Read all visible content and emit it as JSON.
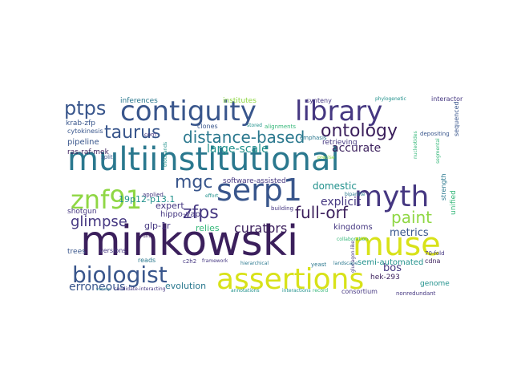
{
  "colors": {
    "dark_purple": "#3b1f5c",
    "indigo": "#453781",
    "blue": "#3e5f8a",
    "slate": "#39568c",
    "teal": "#2a788e",
    "teal_green": "#21918c",
    "green": "#35b779",
    "lime": "#8fd744",
    "yellow": "#d8e219",
    "bright_yellow": "#e8e419"
  },
  "words": [
    {
      "text": "minkowski",
      "color": "dark_purple"
    },
    {
      "text": "multiinstitutional",
      "color": "teal"
    },
    {
      "text": "contiguity",
      "color": "slate"
    },
    {
      "text": "library",
      "color": "indigo"
    },
    {
      "text": "serp1",
      "color": "slate"
    },
    {
      "text": "assertions",
      "color": "yellow"
    },
    {
      "text": "znf91",
      "color": "lime"
    },
    {
      "text": "myth",
      "color": "indigo"
    },
    {
      "text": "muse",
      "color": "yellow"
    },
    {
      "text": "biologist",
      "color": "slate"
    },
    {
      "text": "ptps",
      "color": "slate"
    },
    {
      "text": "ontology",
      "color": "dark_purple"
    },
    {
      "text": "taurus",
      "color": "slate"
    },
    {
      "text": "distance-based",
      "color": "teal"
    },
    {
      "text": "mgc",
      "color": "slate"
    },
    {
      "text": "zfps",
      "color": "indigo"
    },
    {
      "text": "paint",
      "color": "lime"
    },
    {
      "text": "full-orf",
      "color": "dark_purple"
    },
    {
      "text": "glimpse",
      "color": "indigo"
    },
    {
      "text": "curators",
      "color": "dark_purple"
    },
    {
      "text": "accurate",
      "color": "dark_purple"
    },
    {
      "text": "erroneous",
      "color": "slate"
    },
    {
      "text": "explicit",
      "color": "indigo"
    },
    {
      "text": "large-scale",
      "color": "teal_green"
    },
    {
      "text": "metrics",
      "color": "slate"
    },
    {
      "text": "domestic",
      "color": "teal_green"
    },
    {
      "text": "bos",
      "color": "indigo"
    },
    {
      "text": "expert",
      "color": "indigo"
    },
    {
      "text": "kingdoms",
      "color": "indigo"
    },
    {
      "text": "evolution",
      "color": "teal"
    },
    {
      "text": "19p12-p13.1",
      "color": "teal_green"
    },
    {
      "text": "glp-1r",
      "color": "indigo"
    },
    {
      "text": "hippo-yap",
      "color": "indigo"
    },
    {
      "text": "inferences",
      "color": "teal"
    },
    {
      "text": "institutes",
      "color": "lime"
    },
    {
      "text": "krab-zfp",
      "color": "slate"
    },
    {
      "text": "pipeline",
      "color": "slate"
    },
    {
      "text": "ras-raf-mek",
      "color": "dark_purple"
    },
    {
      "text": "cytokinesis",
      "color": "slate"
    },
    {
      "text": "shotgun",
      "color": "indigo"
    },
    {
      "text": "trees",
      "color": "slate"
    },
    {
      "text": "software-assisted",
      "color": "indigo"
    },
    {
      "text": "semi-automated",
      "color": "teal_green"
    },
    {
      "text": "genome",
      "color": "teal_green"
    },
    {
      "text": "hek-293",
      "color": "dark_purple"
    },
    {
      "text": "relies",
      "color": "green"
    },
    {
      "text": "retrieving",
      "color": "indigo"
    },
    {
      "text": "synteny",
      "color": "indigo"
    },
    {
      "text": "interactor",
      "color": "indigo"
    },
    {
      "text": "sequenced",
      "color": "slate"
    },
    {
      "text": "consortium",
      "color": "indigo"
    },
    {
      "text": "nonredundant",
      "color": "indigo"
    },
    {
      "text": "70-fold",
      "color": "indigo"
    },
    {
      "text": "cdna",
      "color": "dark_purple"
    },
    {
      "text": "unified",
      "color": "green"
    },
    {
      "text": "strength",
      "color": "teal"
    },
    {
      "text": "emphasis",
      "color": "teal"
    },
    {
      "text": "applied",
      "color": "indigo"
    },
    {
      "text": "building",
      "color": "indigo"
    },
    {
      "text": "com",
      "color": "indigo"
    },
    {
      "text": "clones",
      "color": "slate"
    },
    {
      "text": "yeast",
      "color": "teal"
    },
    {
      "text": "reads",
      "color": "teal"
    },
    {
      "text": "c2h2",
      "color": "indigo"
    },
    {
      "text": "split",
      "color": "slate"
    },
    {
      "text": "depositing",
      "color": "slate"
    },
    {
      "text": "versions",
      "color": "indigo"
    },
    {
      "text": "dnas",
      "color": "dark_purple"
    },
    {
      "text": "annotations",
      "color": "teal_green"
    },
    {
      "text": "interactions",
      "color": "teal_green"
    },
    {
      "text": "collaboration",
      "color": "green"
    },
    {
      "text": "phylogenetic",
      "color": "teal_green"
    },
    {
      "text": "alignments",
      "color": "green"
    },
    {
      "text": "thousands",
      "color": "teal_green"
    },
    {
      "text": "framework",
      "color": "indigo"
    },
    {
      "text": "hierarchical",
      "color": "teal"
    },
    {
      "text": "landscape",
      "color": "teal"
    },
    {
      "text": "bipartite",
      "color": "teal"
    },
    {
      "text": "precise",
      "color": "lime"
    },
    {
      "text": "stored",
      "color": "teal_green"
    },
    {
      "text": "record",
      "color": "green"
    },
    {
      "text": "glucagon-like",
      "color": "indigo"
    },
    {
      "text": "nucleotides",
      "color": "green"
    },
    {
      "text": "segmental",
      "color": "green"
    },
    {
      "text": "candidate-interacting",
      "color": "indigo"
    },
    {
      "text": "variety",
      "color": "teal"
    },
    {
      "text": "effort",
      "color": "teal_green"
    }
  ]
}
